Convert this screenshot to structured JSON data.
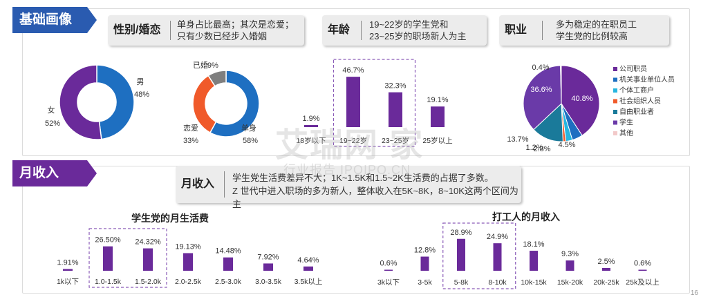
{
  "sections": {
    "profile_tag": "基础画像",
    "income_tag": "月收入"
  },
  "callouts": {
    "gender": {
      "label": "性别/婚恋",
      "lines": [
        "单身占比最高；其次是恋爱；",
        "只有少数已经步入婚姻"
      ]
    },
    "age": {
      "label": "年龄",
      "lines": [
        "19~22岁的学生党和",
        "23~25岁的职场新人为主"
      ]
    },
    "job": {
      "label": "职业",
      "lines": [
        "多为稳定的在职员工",
        "学生党的比例较高"
      ]
    },
    "income": {
      "label": "月收入",
      "lines": [
        "学生党生活费差异不大；1K~1.5K和1.5~2K生活费的占据了多数。",
        "Z 世代中进入职场的多为新人，整体收入在5K~8K，8~10K这两个区间为主"
      ]
    }
  },
  "watermark": {
    "main": "艾瑞网 家",
    "sub": "行业报告 IPOIPO.CN"
  },
  "page_number": "16",
  "colors": {
    "purple": "#6a2a9a",
    "blue": "#1e6fc1",
    "orange": "#f05a2a",
    "gray": "#7f7f7f",
    "teal": "#1a8aa0",
    "lightblue": "#27b6e0",
    "pink": "#f2c9c9",
    "tag": "#2a5bb0",
    "tag_purple": "#6a2a9a"
  },
  "chart_data": [
    {
      "type": "pie",
      "name": "gender",
      "labels": [
        "男",
        "女"
      ],
      "values": [
        48,
        52
      ],
      "value_labels": [
        "48%",
        "52%"
      ],
      "colors": [
        "#1e6fc1",
        "#6a2a9a"
      ]
    },
    {
      "type": "pie",
      "name": "marital",
      "labels": [
        "单身",
        "恋爱",
        "已婚"
      ],
      "values": [
        58,
        33,
        9
      ],
      "value_labels": [
        "58%",
        "33%",
        "9%"
      ],
      "colors": [
        "#1e6fc1",
        "#f05a2a",
        "#7f7f7f"
      ]
    },
    {
      "type": "bar",
      "name": "age",
      "categories": [
        "18岁以下",
        "19~22岁",
        "23~25岁",
        "25岁以上"
      ],
      "values": [
        1.9,
        46.7,
        32.3,
        19.1
      ],
      "value_labels": [
        "1.9%",
        "46.7%",
        "32.3%",
        "19.1%"
      ],
      "highlight": [
        1,
        2
      ],
      "ylim": [
        0,
        50
      ]
    },
    {
      "type": "pie",
      "name": "occupation",
      "legend": [
        "公司职员",
        "机关事业单位人员",
        "个体工商户",
        "社会组织人员",
        "自由职业者",
        "学生",
        "其他"
      ],
      "values": [
        40.8,
        4.5,
        2.8,
        1.2,
        13.7,
        36.6,
        0.4
      ],
      "value_labels": [
        "40.8%",
        "4.5%",
        "2.8%",
        "1.2%",
        "13.7%",
        "36.6%",
        "0.4%"
      ],
      "colors": [
        "#6a2a9a",
        "#1e6fc1",
        "#27b6e0",
        "#f05a2a",
        "#1a7a9a",
        "#6a3aa8",
        "#f2c9c9"
      ],
      "legend_placement": "right"
    },
    {
      "type": "bar",
      "name": "student_allowance",
      "title": "学生党的月生活费",
      "categories": [
        "1k以下",
        "1.0-1.5k",
        "1.5-2.0k",
        "2.0-2.5k",
        "2.5-3.0k",
        "3.0-3.5k",
        "3.5k以上"
      ],
      "values": [
        1.91,
        26.5,
        24.32,
        19.13,
        14.48,
        7.92,
        4.64
      ],
      "value_labels": [
        "1.91%",
        "26.50%",
        "24.32%",
        "19.13%",
        "14.48%",
        "7.92%",
        "4.64%"
      ],
      "highlight": [
        1,
        2
      ],
      "ylim": [
        0,
        30
      ]
    },
    {
      "type": "bar",
      "name": "worker_income",
      "title": "打工人的月收入",
      "categories": [
        "3k以下",
        "3-5k",
        "5-8k",
        "8-10k",
        "10k-15k",
        "15k-20k",
        "20k-25k",
        "25k及以上"
      ],
      "values": [
        0.6,
        12.8,
        28.9,
        24.9,
        18.1,
        9.3,
        2.5,
        0.6
      ],
      "value_labels": [
        "0.6%",
        "12.8%",
        "28.9%",
        "24.9%",
        "18.1%",
        "9.3%",
        "2.5%",
        "0.6%"
      ],
      "highlight": [
        2,
        3
      ],
      "ylim": [
        0,
        30
      ]
    }
  ]
}
